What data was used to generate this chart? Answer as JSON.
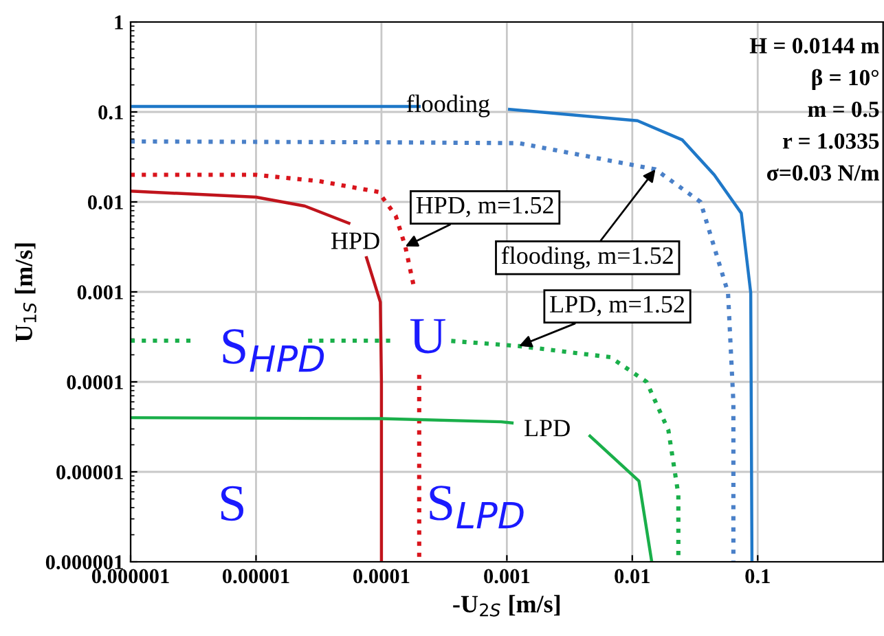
{
  "chart_data": {
    "type": "line",
    "xlabel": "-U$_{2S}$ [m/s]",
    "ylabel": "U$_{1S}$ [m/s]",
    "log": "xy",
    "grid": true,
    "legend": false,
    "marker": "none",
    "xlim": [
      1e-06,
      1
    ],
    "ylim": [
      1e-06,
      1
    ],
    "xticks": [
      {
        "value": 1e-06,
        "label": "0.000001"
      },
      {
        "value": 1e-05,
        "label": "0.00001"
      },
      {
        "value": 0.0001,
        "label": "0.0001"
      },
      {
        "value": 0.001,
        "label": "0.001"
      },
      {
        "value": 0.01,
        "label": "0.01"
      },
      {
        "value": 0.1,
        "label": "0.1"
      }
    ],
    "yticks": [
      {
        "value": 1e-06,
        "label": "0.000001"
      },
      {
        "value": 1e-05,
        "label": "0.00001"
      },
      {
        "value": 0.0001,
        "label": "0.0001"
      },
      {
        "value": 0.001,
        "label": "0.001"
      },
      {
        "value": 0.01,
        "label": "0.01"
      },
      {
        "value": 0.1,
        "label": "0.1"
      },
      {
        "value": 1,
        "label": "1"
      }
    ],
    "series": [
      {
        "name": "flooding",
        "color": "#1f78c8",
        "line_style": "solid",
        "x": [
          1e-06,
          0.0002,
          0.0003,
          0.00105,
          0.011,
          0.025,
          0.045,
          0.074,
          0.088,
          0.09
        ],
        "values": [
          0.115,
          0.115,
          null,
          0.107,
          0.08,
          0.049,
          0.02,
          0.0075,
          0.00098,
          1e-06
        ]
      },
      {
        "name": "flooding, m=1.52",
        "color": "#4a80c8",
        "line_style": "dotted",
        "x": [
          1e-06,
          0.0001,
          0.00125,
          0.0153,
          0.035,
          0.058,
          0.064,
          0.064
        ],
        "values": [
          0.047,
          0.046,
          0.045,
          0.023,
          0.01,
          0.00098,
          5.9e-05,
          1e-06
        ]
      },
      {
        "name": "HPD",
        "color": "#c0141c",
        "line_style": "solid",
        "x": [
          1e-06,
          1e-05,
          2.45e-05,
          5.5e-05,
          6.5e-05,
          7.6e-05,
          9.8e-05,
          0.0001,
          0.0001
        ],
        "values": [
          0.0132,
          0.0113,
          0.009,
          0.0058,
          null,
          0.0024,
          0.00077,
          0.0001,
          1e-06
        ]
      },
      {
        "name": "HPD, m=1.52",
        "color": "#d9141c",
        "line_style": "dotted",
        "x": [
          1e-06,
          1e-05,
          3.2e-05,
          9.5e-05,
          0.00013,
          0.000155,
          0.00018,
          0.00019,
          0.0002,
          0.0002
        ],
        "values": [
          0.02,
          0.02,
          0.017,
          0.0129,
          0.007,
          0.0032,
          0.0012,
          null,
          0.00012,
          1e-06
        ]
      },
      {
        "name": "LPD",
        "color": "#1aaf4a",
        "line_style": "solid",
        "x": [
          1e-06,
          0.0001,
          0.0009,
          0.0011,
          0.002,
          0.0046,
          0.0113,
          0.0143
        ],
        "values": [
          4e-05,
          3.9e-05,
          3.6e-05,
          3.5e-05,
          null,
          2.5e-05,
          7.9e-06,
          1e-06
        ]
      },
      {
        "name": "LPD, m=1.52",
        "color": "#1aaf4a",
        "line_style": "dotted",
        "x": [
          1e-06,
          3.3e-06,
          5e-06,
          2.6e-05,
          0.00013,
          0.0002,
          0.00036,
          0.00125,
          0.0067,
          0.013,
          0.0194,
          0.0233,
          0.0233
        ],
        "values": [
          0.000287,
          0.000287,
          null,
          0.000287,
          0.000287,
          null,
          0.000285,
          0.00025,
          0.000188,
          0.0001,
          2.9e-05,
          5.6e-06,
          1e-06
        ]
      }
    ],
    "annotations": [
      "S$_{HPD}$",
      "U",
      "S",
      "S$_{LPD}$",
      "H = 0.0144 m",
      "β = 10°",
      "m = 0.5",
      "r = 1.0335",
      "σ=0.03 N/m"
    ]
  }
}
